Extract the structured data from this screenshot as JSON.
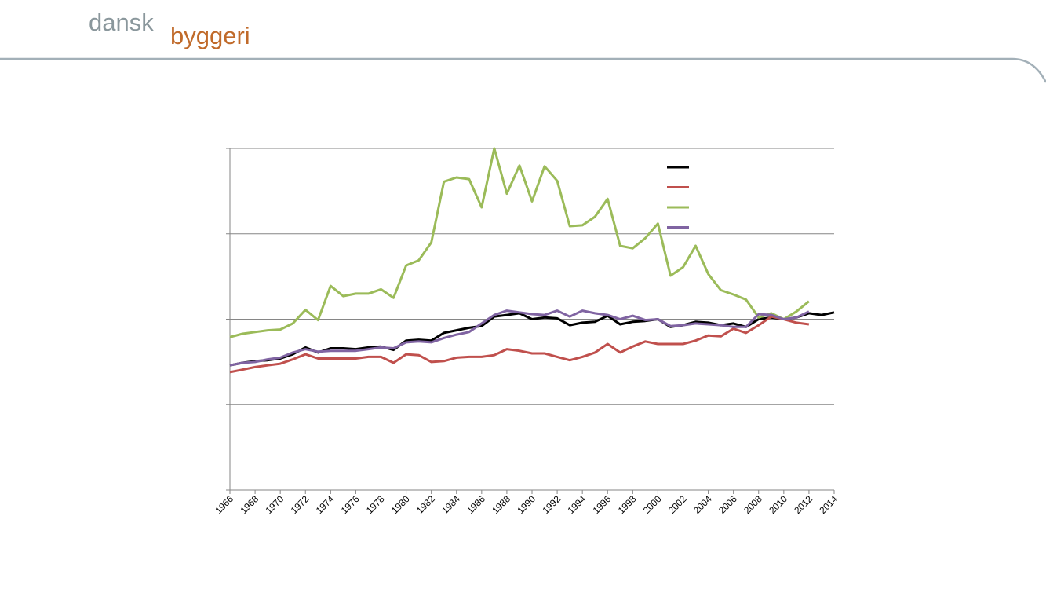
{
  "brand": {
    "part1": "dansk",
    "part2": "byggeri",
    "color1": "#8a979c",
    "color2": "#c06a2a"
  },
  "header": {
    "rule_color": "#a3b0b8"
  },
  "chart_data": {
    "type": "line",
    "title": "",
    "xlabel": "",
    "ylabel": "",
    "x": [
      1966,
      1967,
      1968,
      1969,
      1970,
      1971,
      1972,
      1973,
      1974,
      1975,
      1976,
      1977,
      1978,
      1979,
      1980,
      1981,
      1982,
      1983,
      1984,
      1985,
      1986,
      1987,
      1988,
      1989,
      1990,
      1991,
      1992,
      1993,
      1994,
      1995,
      1996,
      1997,
      1998,
      1999,
      2000,
      2001,
      2002,
      2003,
      2004,
      2005,
      2006,
      2007,
      2008,
      2009,
      2010,
      2011,
      2012,
      2013,
      2014
    ],
    "xticks": [
      "1966",
      "1968",
      "1970",
      "1972",
      "1974",
      "1976",
      "1978",
      "1980",
      "1982",
      "1984",
      "1986",
      "1988",
      "1990",
      "1992",
      "1994",
      "1996",
      "1998",
      "2000",
      "2002",
      "2004",
      "2006",
      "2008",
      "2010",
      "2012",
      "2014"
    ],
    "yticks_labels_visible": false,
    "grid": "horizontal",
    "legend": "top-right, colored line swatches without visible text",
    "series": [
      {
        "color": "#000000",
        "values": [
          0.46,
          0.49,
          0.51,
          0.52,
          0.54,
          0.59,
          0.67,
          0.61,
          0.66,
          0.66,
          0.65,
          0.67,
          0.68,
          0.64,
          0.75,
          0.76,
          0.75,
          0.84,
          0.87,
          0.9,
          0.92,
          1.03,
          1.05,
          1.07,
          1.0,
          1.02,
          1.01,
          0.93,
          0.96,
          0.97,
          1.04,
          0.94,
          0.97,
          0.98,
          1.0,
          0.91,
          0.93,
          0.97,
          0.96,
          0.93,
          0.95,
          0.91,
          1.0,
          1.02,
          1.0,
          1.02,
          1.07,
          1.05,
          1.08
        ]
      },
      {
        "color": "#c0504d",
        "values": [
          0.38,
          0.41,
          0.44,
          0.46,
          0.48,
          0.53,
          0.59,
          0.54,
          0.54,
          0.54,
          0.54,
          0.56,
          0.56,
          0.49,
          0.59,
          0.58,
          0.5,
          0.51,
          0.55,
          0.56,
          0.56,
          0.58,
          0.65,
          0.63,
          0.6,
          0.6,
          0.56,
          0.52,
          0.56,
          0.61,
          0.71,
          0.61,
          0.68,
          0.74,
          0.71,
          0.71,
          0.71,
          0.75,
          0.81,
          0.8,
          0.89,
          0.84,
          0.93,
          1.03,
          1.0,
          0.96,
          0.94,
          null,
          null
        ]
      },
      {
        "color": "#9bbb59",
        "values": [
          0.79,
          0.83,
          0.85,
          0.87,
          0.88,
          0.95,
          1.11,
          0.99,
          1.39,
          1.27,
          1.3,
          1.3,
          1.35,
          1.25,
          1.63,
          1.69,
          1.9,
          2.61,
          2.66,
          2.64,
          2.31,
          3.0,
          2.47,
          2.8,
          2.38,
          2.79,
          2.62,
          2.09,
          2.1,
          2.2,
          2.41,
          1.86,
          1.83,
          1.95,
          2.12,
          1.51,
          1.61,
          1.86,
          1.53,
          1.34,
          1.29,
          1.23,
          1.02,
          1.07,
          1.0,
          1.09,
          1.21,
          null,
          null
        ]
      },
      {
        "color": "#8064a2",
        "values": [
          0.46,
          0.49,
          0.5,
          0.53,
          0.55,
          0.61,
          0.65,
          0.62,
          0.63,
          0.63,
          0.63,
          0.65,
          0.67,
          0.66,
          0.73,
          0.74,
          0.73,
          0.78,
          0.82,
          0.85,
          0.95,
          1.05,
          1.1,
          1.08,
          1.06,
          1.05,
          1.1,
          1.03,
          1.1,
          1.07,
          1.05,
          1.0,
          1.04,
          0.99,
          1.0,
          0.92,
          0.93,
          0.95,
          0.94,
          0.93,
          0.91,
          0.91,
          1.06,
          1.05,
          1.0,
          1.02,
          1.09,
          null,
          null
        ]
      }
    ],
    "ylim": [
      -1,
      3
    ]
  }
}
